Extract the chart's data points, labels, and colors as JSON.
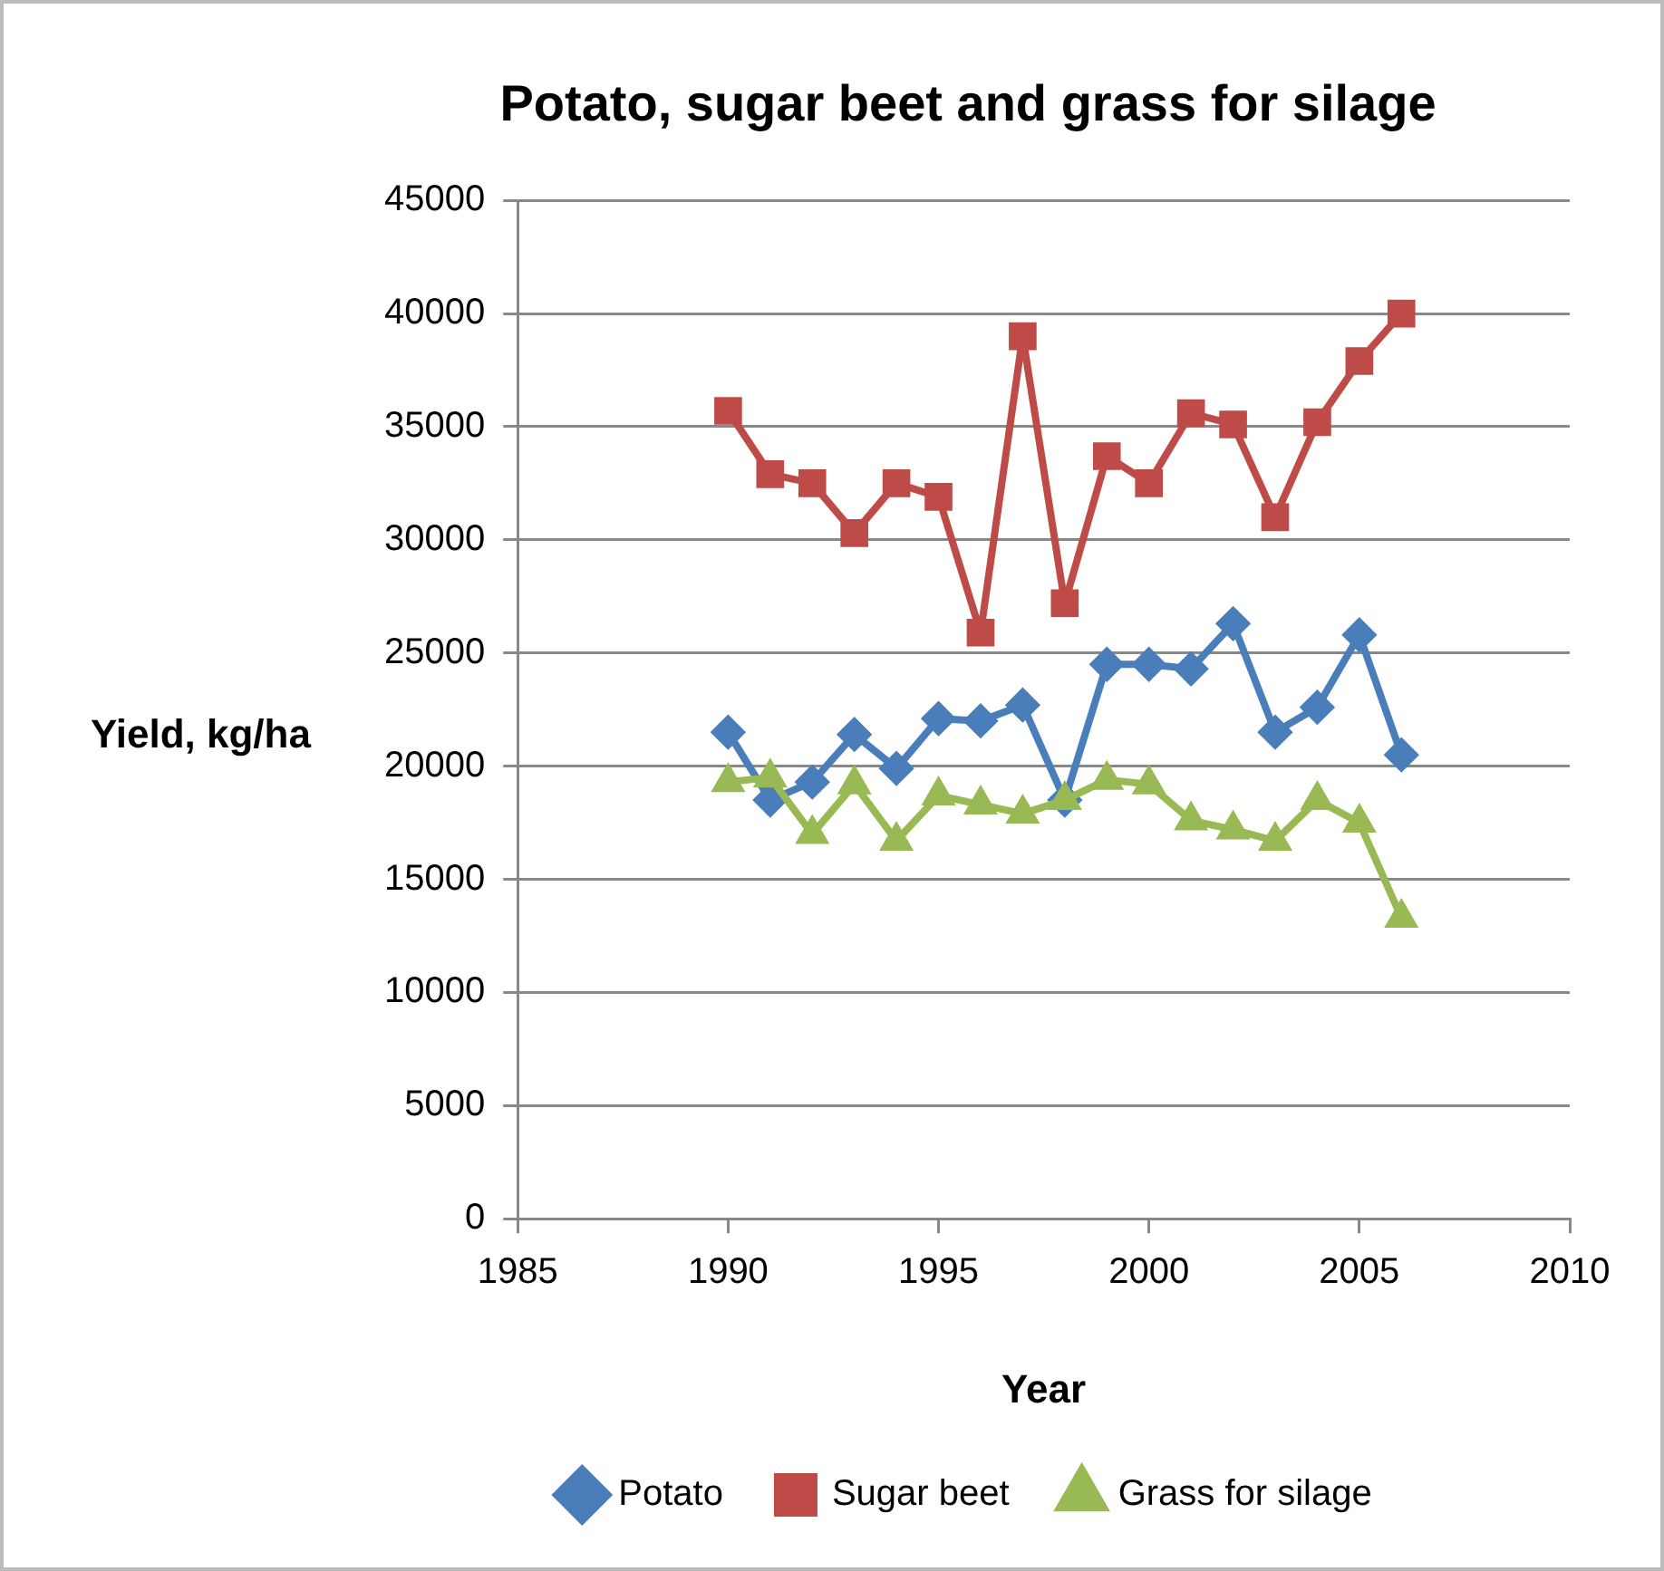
{
  "chart_data": {
    "type": "line",
    "title": "Potato, sugar beet and grass for silage",
    "xlabel": "Year",
    "ylabel": "Yield, kg/ha",
    "x": [
      1990,
      1991,
      1992,
      1993,
      1994,
      1995,
      1996,
      1997,
      1998,
      1999,
      2000,
      2001,
      2002,
      2003,
      2004,
      2005,
      2006
    ],
    "series": [
      {
        "name": "Potato",
        "color": "#4a7ebb",
        "marker": "diamond",
        "values": [
          21500,
          18500,
          19300,
          21400,
          19900,
          22100,
          22000,
          22700,
          18500,
          24500,
          24500,
          24300,
          26300,
          21500,
          22600,
          25800,
          20500
        ]
      },
      {
        "name": "Sugar beet",
        "color": "#be4b48",
        "marker": "square",
        "values": [
          35700,
          32900,
          32500,
          30300,
          32500,
          31900,
          25900,
          39000,
          27200,
          33700,
          32500,
          35600,
          35100,
          31000,
          35200,
          37900,
          40000
        ]
      },
      {
        "name": "Grass for silage",
        "color": "#98b954",
        "marker": "triangle",
        "values": [
          19300,
          19500,
          17000,
          19200,
          16700,
          18700,
          18300,
          17900,
          18500,
          19400,
          19200,
          17600,
          17200,
          16700,
          18500,
          17500,
          13300
        ]
      }
    ],
    "xlim": [
      1985,
      2010
    ],
    "xticks": [
      1985,
      1990,
      1995,
      2000,
      2005,
      2010
    ],
    "ylim": [
      0,
      45000
    ],
    "yticks": [
      0,
      5000,
      10000,
      15000,
      20000,
      25000,
      30000,
      35000,
      40000,
      45000
    ],
    "grid": "y",
    "legend": "bottom",
    "line_style": "solid"
  }
}
